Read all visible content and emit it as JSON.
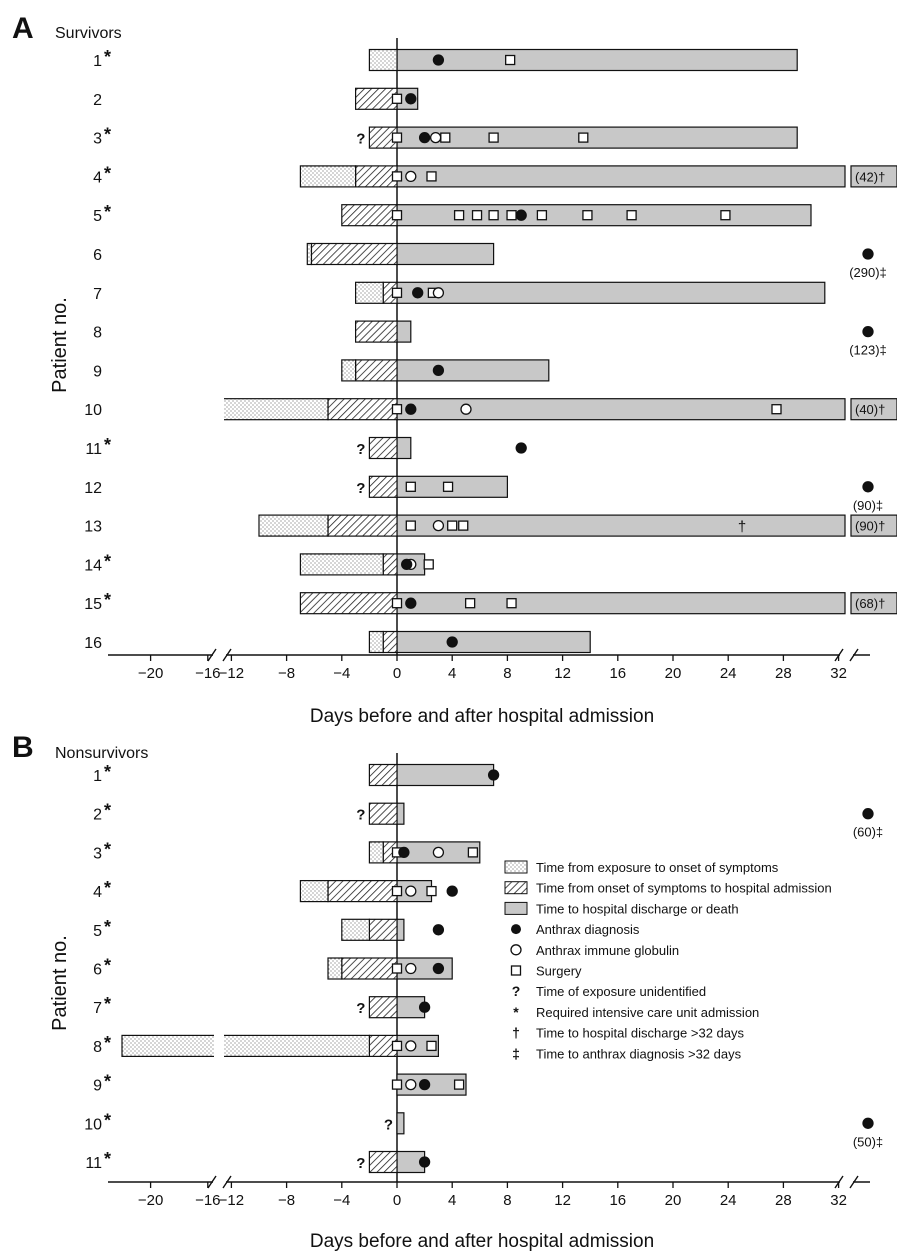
{
  "colors": {
    "shaft": "#c8c8c8",
    "ink": "#111111",
    "paper": "#ffffff"
  },
  "legend": {
    "items": [
      {
        "type": "exposure",
        "label": "Time from exposure to onset of symptoms"
      },
      {
        "type": "onset",
        "label": "Time from onset of symptoms to hospital admission"
      },
      {
        "type": "hospital",
        "label": "Time to hospital discharge or death"
      },
      {
        "type": "dx",
        "label": "Anthrax diagnosis"
      },
      {
        "type": "aig",
        "label": "Anthrax immune globulin"
      },
      {
        "type": "surgery",
        "label": "Surgery"
      },
      {
        "type": "q",
        "label": "Time of exposure unidentified"
      },
      {
        "type": "star",
        "label": "Required intensive care unit admission"
      },
      {
        "type": "dagger",
        "label": "Time to hospital discharge >32 days"
      },
      {
        "type": "ddagger",
        "label": "Time to anthrax diagnosis >32 days"
      }
    ]
  },
  "chart_data": [
    {
      "type": "bar",
      "panel_letter": "A",
      "title": "Survivors",
      "xlabel": "Days before and after hospital admission",
      "ylabel": "Patient no.",
      "xlim": [
        -22,
        35
      ],
      "axis_break": [
        -14,
        -12
      ],
      "xticks": [
        "-20",
        "-16",
        "-12",
        "-8",
        "-4",
        "0",
        "4",
        "8",
        "12",
        "16",
        "20",
        "24",
        "28",
        "32"
      ],
      "patients": [
        {
          "label": "1",
          "icu": true,
          "exposure": -2,
          "onset": 0,
          "end": 29,
          "dx": [
            3
          ],
          "aig": [],
          "surgery": [
            8.2
          ]
        },
        {
          "label": "2",
          "icu": false,
          "exposure": null,
          "onset": -3,
          "end": 1.5,
          "dx": [
            1
          ],
          "aig": [],
          "surgery": [
            0
          ]
        },
        {
          "label": "3",
          "icu": true,
          "unknown_exposure": true,
          "exposure": null,
          "onset": -2,
          "end": 29,
          "dx": [
            2
          ],
          "aig": [
            2.8
          ],
          "surgery": [
            0,
            3.5,
            7,
            13.5
          ]
        },
        {
          "label": "4",
          "icu": true,
          "exposure": -7,
          "onset": -3,
          "end": 35,
          "off_scale": "(42)†",
          "dx": [],
          "aig": [
            1
          ],
          "surgery": [
            0,
            2.5
          ]
        },
        {
          "label": "5",
          "icu": true,
          "exposure": null,
          "onset": -4,
          "end": 30,
          "dx": [
            9
          ],
          "aig": [],
          "surgery": [
            0,
            4.5,
            5.8,
            7,
            8.3,
            10.5,
            13.8,
            17,
            23.8
          ]
        },
        {
          "label": "6",
          "icu": false,
          "exposure": -6.5,
          "onset": -6.2,
          "end": 7,
          "dx": [],
          "aig": [],
          "surgery": [],
          "late_dx": "(290)‡"
        },
        {
          "label": "7",
          "icu": false,
          "exposure": -3,
          "onset": -1,
          "end": 31,
          "dx": [
            1.5
          ],
          "aig": [
            3
          ],
          "surgery": [
            0,
            2.6
          ]
        },
        {
          "label": "8",
          "icu": false,
          "exposure": null,
          "onset": -3,
          "end": 1,
          "dx": [],
          "aig": [],
          "surgery": [],
          "late_dx": "(123)‡"
        },
        {
          "label": "9",
          "icu": false,
          "exposure": -4,
          "onset": -3,
          "end": 11,
          "dx": [
            3
          ],
          "aig": [],
          "surgery": []
        },
        {
          "label": "10",
          "icu": false,
          "exposure": -15,
          "onset": -5,
          "end": 35,
          "off_scale": "(40)†",
          "dx": [
            1
          ],
          "aig": [
            5
          ],
          "surgery": [
            0,
            27.5
          ]
        },
        {
          "label": "11",
          "icu": true,
          "unknown_exposure": true,
          "exposure": null,
          "onset": -2,
          "end": 1,
          "dx": [
            9
          ],
          "aig": [],
          "surgery": []
        },
        {
          "label": "12",
          "icu": false,
          "unknown_exposure": true,
          "exposure": null,
          "onset": -2,
          "end": 8,
          "dx": [],
          "aig": [],
          "surgery": [
            1,
            3.7
          ],
          "late_dx": "(90)‡"
        },
        {
          "label": "13",
          "icu": false,
          "exposure": -10,
          "onset": -5,
          "end": 35,
          "off_scale": "(90)†",
          "dagger_day": 25,
          "dx": [],
          "aig": [
            3
          ],
          "surgery": [
            1,
            4,
            4.8
          ]
        },
        {
          "label": "14",
          "icu": true,
          "exposure": -7,
          "onset": -1,
          "end": 2,
          "dx": [
            0.7
          ],
          "aig": [
            1
          ],
          "surgery": [
            2.3
          ]
        },
        {
          "label": "15",
          "icu": true,
          "exposure": null,
          "onset": -7,
          "end": 35,
          "off_scale": "(68)†",
          "dx": [
            1
          ],
          "aig": [],
          "surgery": [
            0,
            5.3,
            8.3
          ]
        },
        {
          "label": "16",
          "icu": false,
          "exposure": -2,
          "onset": -1,
          "end": 14,
          "dx": [
            4
          ],
          "aig": [],
          "surgery": []
        }
      ]
    },
    {
      "type": "bar",
      "panel_letter": "B",
      "title": "Nonsurvivors",
      "xlabel": "Days before and after hospital admission",
      "ylabel": "Patient no.",
      "xlim": [
        -22,
        35
      ],
      "axis_break": [
        -14,
        -12
      ],
      "xticks": [
        "-20",
        "-16",
        "-12",
        "-8",
        "-4",
        "0",
        "4",
        "8",
        "12",
        "16",
        "20",
        "24",
        "28",
        "32"
      ],
      "patients": [
        {
          "label": "1",
          "icu": true,
          "exposure": null,
          "onset": -2,
          "end": 7,
          "dx": [
            7
          ],
          "aig": [],
          "surgery": []
        },
        {
          "label": "2",
          "icu": true,
          "unknown_exposure": true,
          "exposure": null,
          "onset": -2,
          "end": 0.5,
          "dx": [],
          "aig": [],
          "surgery": [],
          "late_dx": "(60)‡"
        },
        {
          "label": "3",
          "icu": true,
          "exposure": -2,
          "onset": -1,
          "end": 6,
          "dx": [
            0.5
          ],
          "aig": [
            3
          ],
          "surgery": [
            0,
            5.5
          ]
        },
        {
          "label": "4",
          "icu": true,
          "exposure": -7,
          "onset": -5,
          "end": 2.5,
          "dx": [
            4
          ],
          "aig": [
            1
          ],
          "surgery": [
            0,
            2.5
          ]
        },
        {
          "label": "5",
          "icu": true,
          "exposure": -4,
          "onset": -2,
          "end": 0.5,
          "dx": [
            3
          ],
          "aig": [],
          "surgery": []
        },
        {
          "label": "6",
          "icu": true,
          "exposure": -5,
          "onset": -4,
          "end": 4,
          "dx": [
            3
          ],
          "aig": [
            1
          ],
          "surgery": [
            0
          ]
        },
        {
          "label": "7",
          "icu": true,
          "unknown_exposure": true,
          "exposure": null,
          "onset": -2,
          "end": 2,
          "dx": [
            2
          ],
          "aig": [],
          "surgery": []
        },
        {
          "label": "8",
          "icu": true,
          "exposure": -22,
          "onset": -2,
          "end": 3,
          "dx": [],
          "aig": [
            1
          ],
          "surgery": [
            0,
            2.5
          ]
        },
        {
          "label": "9",
          "icu": true,
          "exposure": null,
          "onset": null,
          "end": 5,
          "dx": [
            2
          ],
          "aig": [
            1
          ],
          "surgery": [
            0,
            4.5
          ]
        },
        {
          "label": "10",
          "icu": true,
          "unknown_exposure": true,
          "exposure": null,
          "onset": null,
          "end": 0.5,
          "dx": [],
          "aig": [],
          "surgery": [],
          "late_dx": "(50)‡"
        },
        {
          "label": "11",
          "icu": true,
          "unknown_exposure": true,
          "exposure": null,
          "onset": -2,
          "end": 2,
          "dx": [
            2
          ],
          "aig": [],
          "surgery": []
        }
      ]
    }
  ]
}
